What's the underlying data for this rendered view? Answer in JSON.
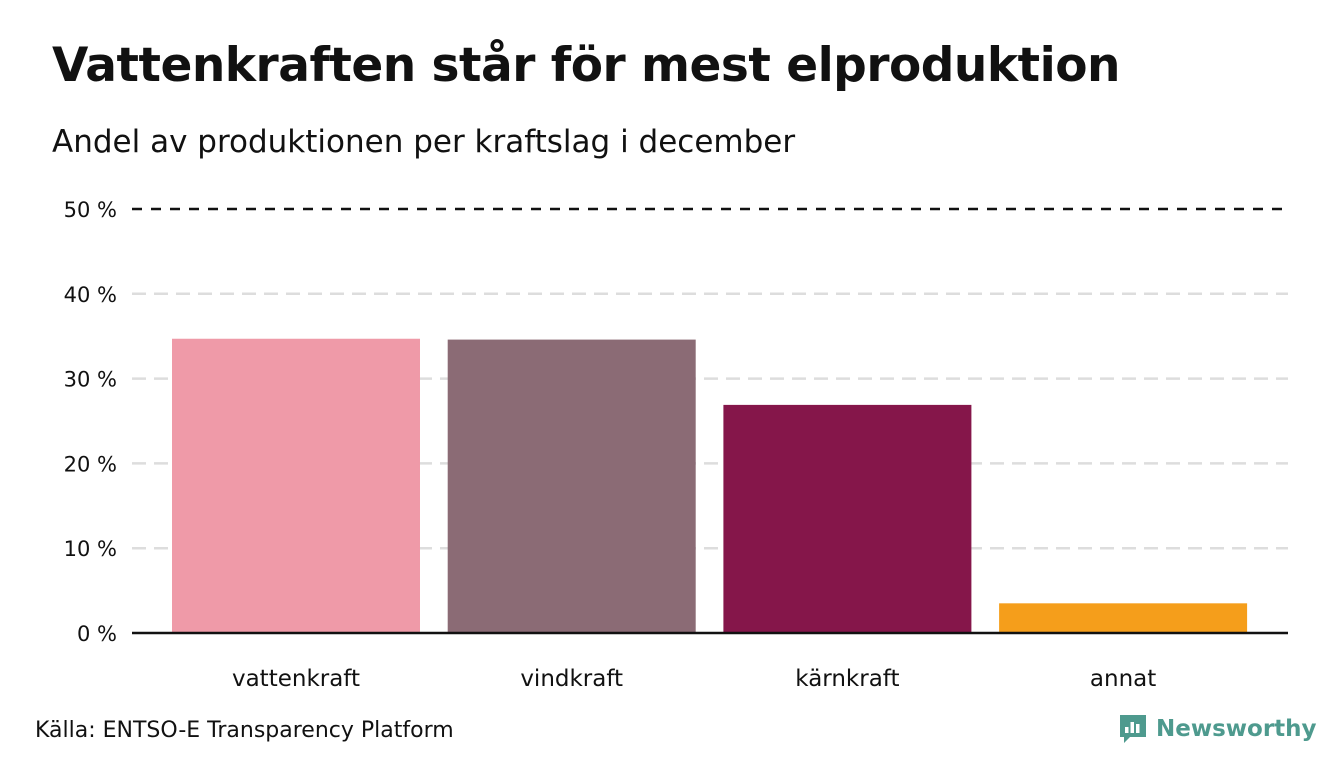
{
  "chart_data": {
    "type": "bar",
    "title": "Vattenkraften står för mest elproduktion",
    "subtitle": "Andel av produktionen per kraftslag i december",
    "categories": [
      "vattenkraft",
      "vindkraft",
      "kärnkraft",
      "annat"
    ],
    "values": [
      34.7,
      34.6,
      26.9,
      3.5
    ],
    "colors": [
      "#ef9aa8",
      "#8b6b75",
      "#85164a",
      "#f59e1b"
    ],
    "ylim": [
      0,
      50
    ],
    "yticks": [
      0,
      10,
      20,
      30,
      40,
      50
    ],
    "ytick_labels": [
      "0 %",
      "10 %",
      "20 %",
      "30 %",
      "40 %",
      "50 %"
    ],
    "xlabel": "",
    "ylabel": "",
    "grid": true
  },
  "footer": {
    "source": "Källa: ENTSO-E Transparency Platform",
    "brand": "Newsworthy",
    "brand_color": "#4e9a8e"
  }
}
